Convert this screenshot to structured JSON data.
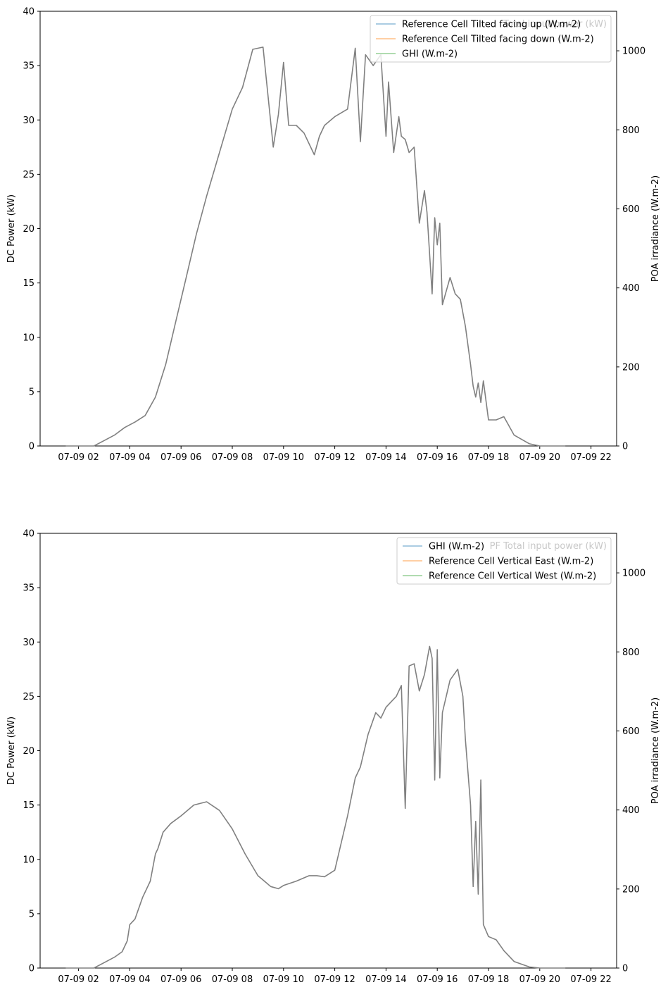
{
  "chart_data": [
    {
      "type": "line",
      "ylabel": "DC Power (kW)",
      "y2label": "POA irradiance (W.m-2)",
      "ylim": [
        0,
        40
      ],
      "y2lim": [
        0,
        1100
      ],
      "yticks": [
        "0",
        "5",
        "10",
        "15",
        "20",
        "25",
        "30",
        "35",
        "40"
      ],
      "y2ticks": [
        "0",
        "200",
        "400",
        "600",
        "800",
        "1000"
      ],
      "xlim_hours": [
        0.5,
        23.0
      ],
      "xticks": [
        "07-09 02",
        "07-09 04",
        "07-09 06",
        "07-09 08",
        "07-09 10",
        "07-09 12",
        "07-09 14",
        "07-09 16",
        "07-09 18",
        "07-09 20",
        "07-09 22"
      ],
      "legend_position": "top-right",
      "legend_ghost": "Total input power (kW)",
      "legend": [
        {
          "name": "Reference Cell Tilted facing up (W.m-2)",
          "color": "#1f77b4"
        },
        {
          "name": "Reference Cell Tilted facing down (W.m-2)",
          "color": "#ff7f0e"
        },
        {
          "name": "GHI (W.m-2)",
          "color": "#2ca02c"
        }
      ],
      "series": [
        {
          "color": "#808080",
          "x": [
            1.5,
            2.6,
            3.0,
            3.4,
            3.8,
            4.2,
            4.6,
            5.0,
            5.4,
            5.8,
            6.2,
            6.6,
            7.0,
            7.5,
            8.0,
            8.4,
            8.8,
            9.2,
            9.6,
            9.8,
            10.0,
            10.2,
            10.35,
            10.5,
            10.8,
            11.2,
            11.4,
            11.6,
            12.0,
            12.5,
            12.8,
            13.0,
            13.2,
            13.5,
            13.8,
            14.0,
            14.1,
            14.3,
            14.5,
            14.6,
            14.75,
            14.9,
            15.1,
            15.3,
            15.5,
            15.6,
            15.8,
            15.9,
            16.0,
            16.1,
            16.2,
            16.5,
            16.7,
            16.9,
            17.1,
            17.3,
            17.4,
            17.5,
            17.6,
            17.7,
            17.8,
            18.0,
            18.3,
            18.6,
            19.0,
            19.6,
            20.0,
            21.0
          ],
          "y": [
            0,
            0,
            0.5,
            1.0,
            1.7,
            2.2,
            2.8,
            4.5,
            7.5,
            11.5,
            15.5,
            19.5,
            23,
            27,
            31,
            33,
            36.5,
            36.7,
            27.5,
            30.5,
            35.3,
            29.5,
            29.5,
            29.5,
            28.8,
            26.8,
            28.5,
            29.5,
            30.3,
            31,
            36.6,
            28,
            36,
            35,
            36,
            28.5,
            33.5,
            27,
            30.3,
            28.5,
            28.2,
            27,
            27.5,
            20.5,
            23.5,
            21.5,
            14,
            21,
            18.5,
            20.5,
            13,
            15.5,
            14,
            13.5,
            11,
            7.5,
            5.5,
            4.5,
            5.8,
            4,
            6,
            2.4,
            2.4,
            2.7,
            1,
            0.2,
            0,
            0
          ]
        }
      ]
    },
    {
      "type": "line",
      "ylabel": "DC Power (kW)",
      "y2label": "POA irradiance (W.m-2)",
      "ylim": [
        0,
        40
      ],
      "y2lim": [
        0,
        1100
      ],
      "yticks": [
        "0",
        "5",
        "10",
        "15",
        "20",
        "25",
        "30",
        "35",
        "40"
      ],
      "y2ticks": [
        "0",
        "200",
        "400",
        "600",
        "800",
        "1000"
      ],
      "xlim_hours": [
        0.5,
        23.0
      ],
      "xticks": [
        "07-09 02",
        "07-09 04",
        "07-09 06",
        "07-09 08",
        "07-09 10",
        "07-09 12",
        "07-09 14",
        "07-09 16",
        "07-09 18",
        "07-09 20",
        "07-09 22"
      ],
      "legend_position": "top-right",
      "legend_ghost": "PF Total input power (kW)",
      "legend": [
        {
          "name": "GHI (W.m-2)",
          "color": "#1f77b4"
        },
        {
          "name": "Reference Cell Vertical East (W.m-2)",
          "color": "#ff7f0e"
        },
        {
          "name": "Reference Cell Vertical West (W.m-2)",
          "color": "#2ca02c"
        }
      ],
      "series": [
        {
          "color": "#808080",
          "x": [
            1.5,
            2.6,
            3.0,
            3.4,
            3.7,
            3.9,
            4.0,
            4.2,
            4.5,
            4.8,
            5.0,
            5.1,
            5.3,
            5.6,
            6.0,
            6.5,
            7.0,
            7.5,
            8.0,
            8.5,
            9.0,
            9.5,
            9.8,
            10.0,
            10.5,
            11.0,
            11.3,
            11.6,
            12.0,
            12.5,
            12.8,
            13.0,
            13.3,
            13.6,
            13.8,
            14.0,
            14.2,
            14.4,
            14.6,
            14.75,
            14.9,
            15.1,
            15.3,
            15.5,
            15.7,
            15.8,
            15.9,
            16.0,
            16.1,
            16.2,
            16.5,
            16.8,
            17.0,
            17.1,
            17.3,
            17.4,
            17.5,
            17.6,
            17.7,
            17.8,
            18.0,
            18.3,
            18.6,
            19.0,
            19.6,
            20.0,
            21.0
          ],
          "y": [
            0,
            0,
            0.5,
            1.0,
            1.5,
            2.5,
            4.0,
            4.5,
            6.5,
            8.0,
            10.5,
            11.0,
            12.5,
            13.3,
            14.0,
            15.0,
            15.3,
            14.5,
            12.8,
            10.5,
            8.5,
            7.5,
            7.3,
            7.6,
            8.0,
            8.5,
            8.5,
            8.4,
            9.0,
            14.0,
            17.5,
            18.5,
            21.5,
            23.5,
            23.0,
            24.0,
            24.5,
            25.0,
            26.0,
            14.7,
            27.8,
            28.0,
            25.5,
            27.0,
            29.6,
            28.5,
            17.3,
            29.3,
            17.5,
            23.5,
            26.5,
            27.5,
            25.0,
            21.0,
            15.0,
            7.5,
            13.5,
            6.8,
            17.3,
            4.0,
            2.9,
            2.6,
            1.6,
            0.6,
            0.1,
            0,
            0
          ]
        }
      ]
    }
  ]
}
